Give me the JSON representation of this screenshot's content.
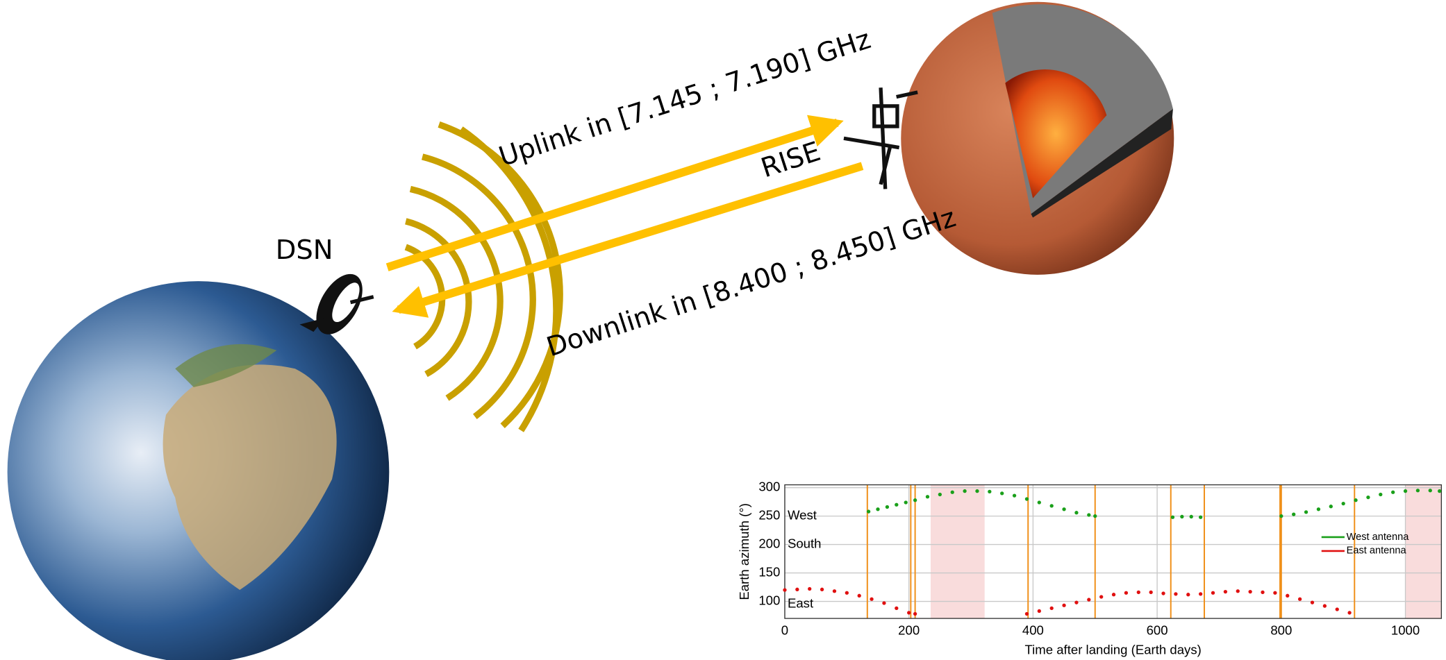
{
  "labels": {
    "dsn": "DSN",
    "uplink": "Uplink in [7.145 ; 7.190] GHz",
    "rise": "RISE",
    "downlink": "Downlink in [8.400 ; 8.450] GHz"
  },
  "chart_data": {
    "type": "scatter",
    "xlabel": "Time after landing (Earth days)",
    "ylabel": "Earth azimuth (°)",
    "xlim": [
      0,
      1058
    ],
    "ylim": [
      70,
      305
    ],
    "xticks": [
      0,
      200,
      400,
      600,
      800,
      1000
    ],
    "yticks": [
      100,
      150,
      200,
      250,
      300
    ],
    "grid": true,
    "legend": "right",
    "region_labels": [
      {
        "value": 250,
        "label": "West"
      },
      {
        "value": 200,
        "label": "South"
      },
      {
        "value": 95,
        "label": "East"
      }
    ],
    "event_lines": [
      133,
      203,
      210,
      392,
      500,
      622,
      676,
      798,
      800,
      918
    ],
    "event_color": "#f0901a",
    "shaded_ranges": [
      [
        235,
        322
      ],
      [
        1000,
        1058
      ]
    ],
    "shade_color": "#f9dcdc",
    "series": [
      {
        "name": "West antenna",
        "color": "#1aa01a",
        "x": [
          135,
          150,
          165,
          180,
          195,
          210,
          230,
          250,
          270,
          290,
          310,
          330,
          350,
          370,
          390,
          410,
          430,
          450,
          470,
          490,
          500,
          625,
          640,
          655,
          670,
          800,
          820,
          840,
          860,
          880,
          900,
          920,
          940,
          960,
          980,
          1000,
          1020,
          1040,
          1055
        ],
        "values": [
          258,
          262,
          266,
          270,
          274,
          278,
          284,
          288,
          292,
          294,
          294,
          293,
          290,
          286,
          280,
          274,
          268,
          262,
          256,
          252,
          250,
          248,
          249,
          249,
          248,
          250,
          253,
          257,
          262,
          267,
          272,
          278,
          283,
          288,
          292,
          294,
          295,
          295,
          294
        ]
      },
      {
        "name": "East antenna",
        "color": "#e01010",
        "x": [
          0,
          20,
          40,
          60,
          80,
          100,
          120,
          140,
          160,
          180,
          200,
          210,
          390,
          410,
          430,
          450,
          470,
          490,
          510,
          530,
          550,
          570,
          590,
          610,
          630,
          650,
          670,
          690,
          710,
          730,
          750,
          770,
          790,
          810,
          830,
          850,
          870,
          890,
          910
        ],
        "values": [
          120,
          121,
          122,
          121,
          118,
          115,
          110,
          104,
          97,
          88,
          80,
          78,
          78,
          83,
          88,
          93,
          98,
          103,
          108,
          112,
          115,
          116,
          116,
          114,
          113,
          112,
          113,
          115,
          117,
          118,
          117,
          116,
          115,
          110,
          104,
          98,
          92,
          86,
          80
        ]
      }
    ]
  }
}
